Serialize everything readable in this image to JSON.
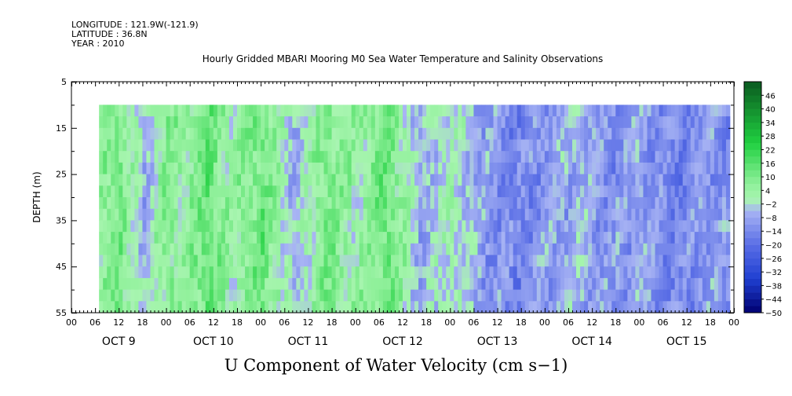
{
  "metadata": {
    "longitude": "LONGITUDE : 121.9W(-121.9)",
    "latitude": "LATITUDE : 36.8N",
    "year": "YEAR : 2010"
  },
  "chart_data": {
    "type": "heatmap",
    "title": "Hourly Gridded MBARI Mooring M0 Sea Water Temperature and Salinity Observations",
    "subtitle": "U Component of Water Velocity (cm s−1)",
    "ylabel": "DEPTH (m)",
    "ylim": [
      5,
      55
    ],
    "y_ticks": [
      "5",
      "15",
      "25",
      "35",
      "45",
      "55"
    ],
    "y_ticks_unlabeled": [
      10,
      20,
      30,
      40,
      50
    ],
    "x_ticks_hours": [
      "00",
      "06",
      "12",
      "18",
      "00",
      "06",
      "12",
      "18",
      "00",
      "06",
      "12",
      "18",
      "00",
      "06",
      "12",
      "18",
      "00",
      "06",
      "12",
      "18",
      "00",
      "06",
      "12",
      "18",
      "00",
      "06",
      "12",
      "18",
      "00"
    ],
    "x_day_labels": [
      "OCT  9",
      "OCT 10",
      "OCT 11",
      "OCT 12",
      "OCT 13",
      "OCT 14",
      "OCT 15"
    ],
    "data_depth_range": [
      10,
      55
    ],
    "data_start": "OCT 9 07",
    "data_end": "OCT 15 23",
    "colorbar": {
      "labels": [
        "46",
        "40",
        "34",
        "28",
        "22",
        "16",
        "10",
        "4",
        "−2",
        "−8",
        "−14",
        "−20",
        "−26",
        "−32",
        "−38",
        "−44",
        "−50"
      ],
      "min": -50,
      "max": 52,
      "step": 3,
      "colors": {
        "stops_value": [
          -50,
          -35,
          -20,
          -5,
          0,
          7,
          25,
          52
        ],
        "stops_hex": [
          "#000070",
          "#1f3fd1",
          "#5a6ee6",
          "#a8b4f4",
          "#a8f5b0",
          "#8ff09a",
          "#20d040",
          "#0a5a20"
        ]
      }
    },
    "pattern_by_hour": {
      "hour_offset": [
        0,
        8,
        12,
        18,
        24,
        28,
        34,
        40,
        48,
        56,
        64,
        72,
        80,
        88,
        96,
        104,
        112,
        120,
        128,
        136,
        144,
        152,
        160,
        167
      ],
      "u_value": [
        0,
        7,
        10,
        -6,
        9,
        4,
        14,
        3,
        12,
        -6,
        10,
        3,
        13,
        -7,
        1,
        -9,
        -15,
        -10,
        -6,
        -12,
        -8,
        -16,
        -10,
        -12
      ]
    }
  }
}
